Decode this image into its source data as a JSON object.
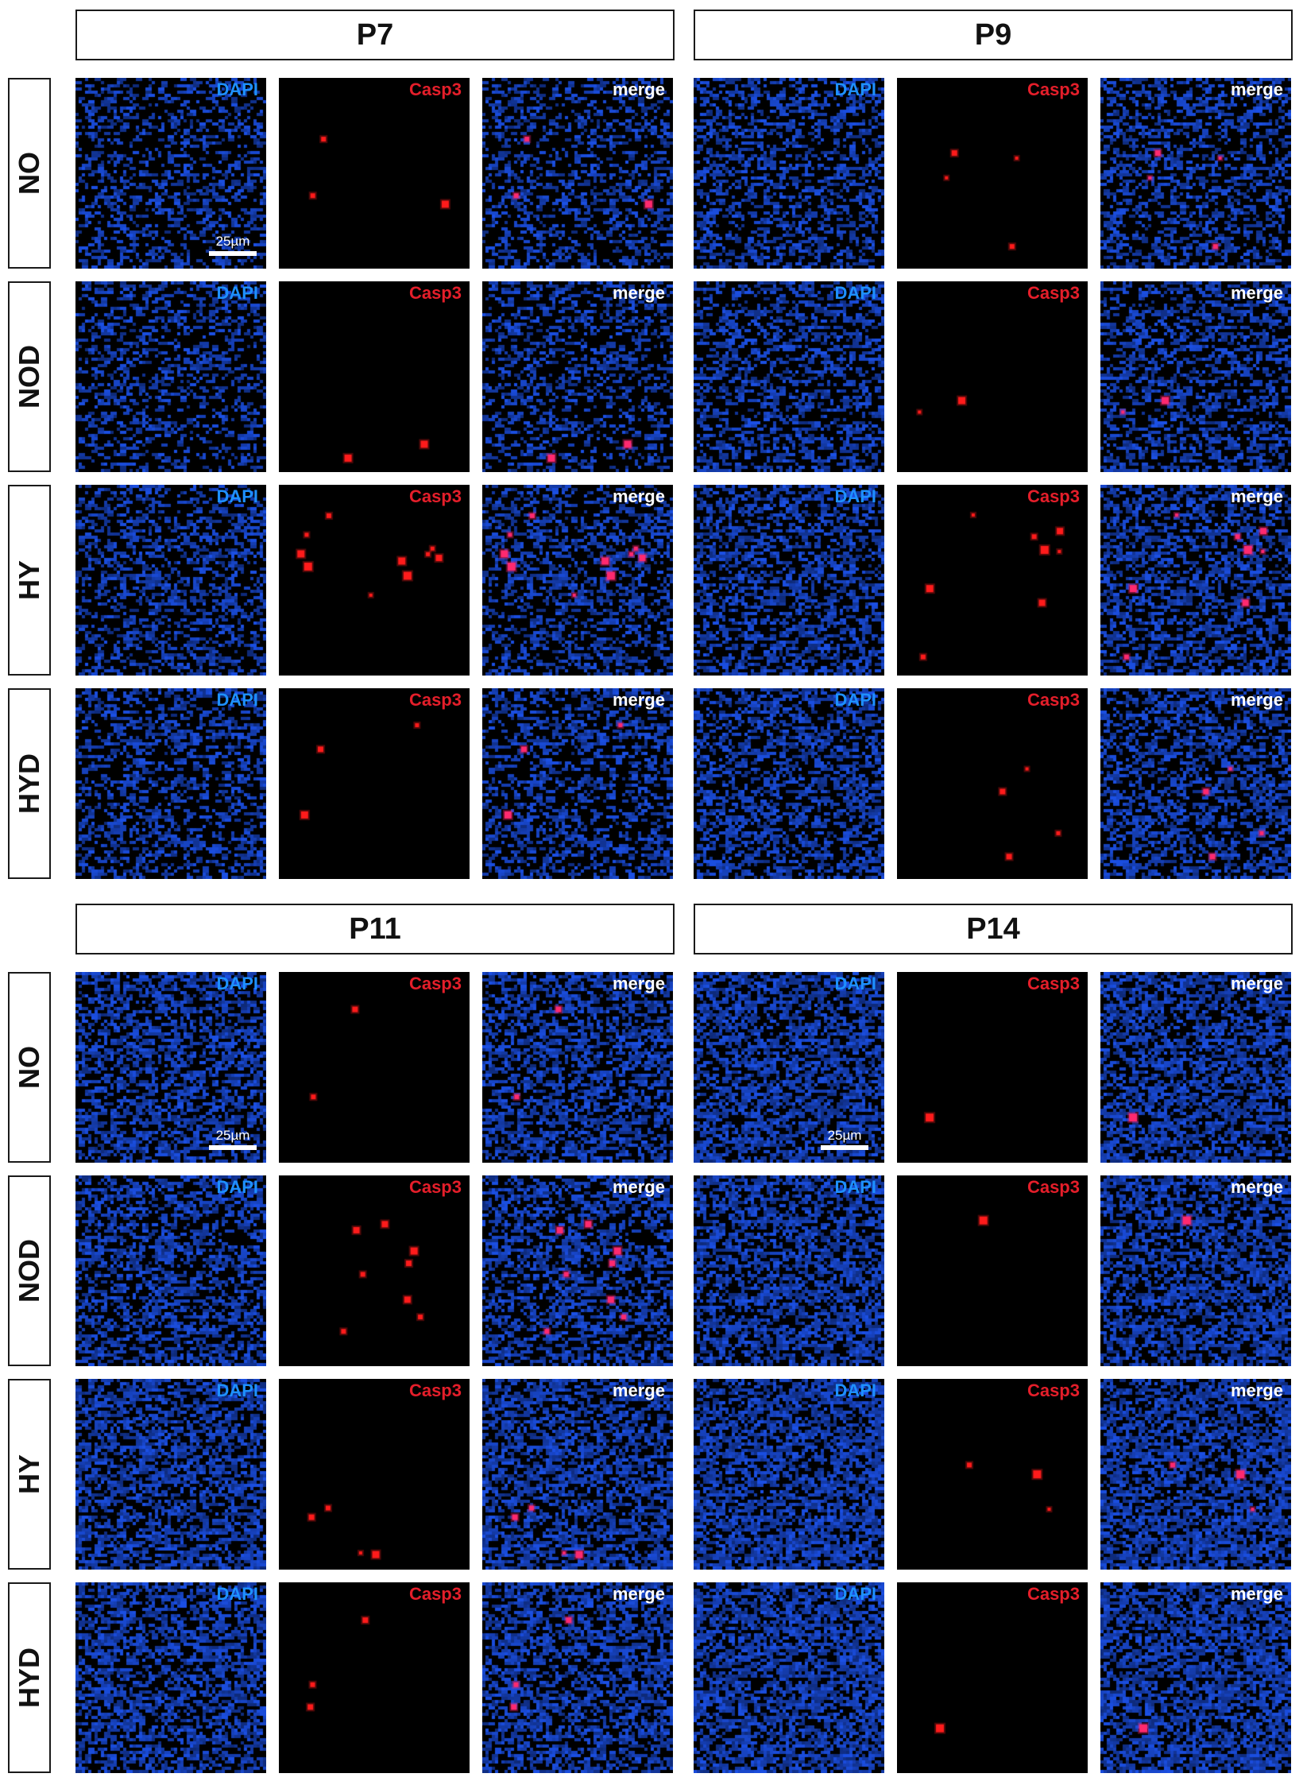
{
  "blocks": [
    {
      "time_point": "P7",
      "scale_bar_label": "25µm"
    },
    {
      "time_point": "P9",
      "scale_bar_label": ""
    },
    {
      "time_point": "P11",
      "scale_bar_label": "25µm"
    },
    {
      "time_point": "P14",
      "scale_bar_label": "25µm"
    }
  ],
  "conditions": [
    "NO",
    "NOD",
    "HY",
    "HYD"
  ],
  "channels": [
    "DAPI",
    "Casp3",
    "merge"
  ],
  "colors": {
    "dapi_label": "#1e90ff",
    "casp3_label": "#e41e2a",
    "merge_label": "#ffffff",
    "nuclei": "#1a3dbf",
    "casp3_signal": "#ff1a1a",
    "background": "#000000"
  },
  "casp3_positive_cells": {
    "P7": {
      "NO": 3,
      "NOD": 2,
      "HY": 10,
      "HYD": 3
    },
    "P9": {
      "NO": 4,
      "NOD": 2,
      "HY": 8,
      "HYD": 4
    },
    "P11": {
      "NO": 2,
      "NOD": 8,
      "HY": 4,
      "HYD": 3
    },
    "P14": {
      "NO": 1,
      "NOD": 1,
      "HY": 3,
      "HYD": 1
    }
  }
}
